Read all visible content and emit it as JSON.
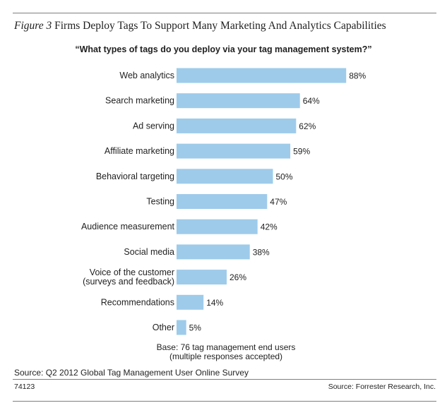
{
  "figure": {
    "label": "Figure 3",
    "title": "Firms Deploy Tags To Support Many Marketing And Analytics Capabilities"
  },
  "chart_data": {
    "type": "bar",
    "orientation": "horizontal",
    "title": "“What types of tags do you deploy via your tag management system?”",
    "categories": [
      "Web analytics",
      "Search marketing",
      "Ad serving",
      "Affiliate marketing",
      "Behavioral targeting",
      "Testing",
      "Audience measurement",
      "Social media",
      "Voice of the customer\n(surveys and feedback)",
      "Recommendations",
      "Other"
    ],
    "values": [
      88,
      64,
      62,
      59,
      50,
      47,
      42,
      38,
      26,
      14,
      5
    ],
    "data_labels": [
      "88%",
      "64%",
      "62%",
      "59%",
      "50%",
      "47%",
      "42%",
      "38%",
      "26%",
      "14%",
      "5%"
    ],
    "unit": "%",
    "xlim": [
      0,
      100
    ],
    "bar_color": "#9ecbea",
    "grid": false,
    "legend": "none"
  },
  "notes": {
    "base_line1": "Base: 76 tag management end users",
    "base_line2": "(multiple responses accepted)",
    "source": "Source: Q2 2012 Global Tag Management User Online Survey",
    "figure_number": "74123",
    "publisher": "Source: Forrester Research, Inc."
  }
}
